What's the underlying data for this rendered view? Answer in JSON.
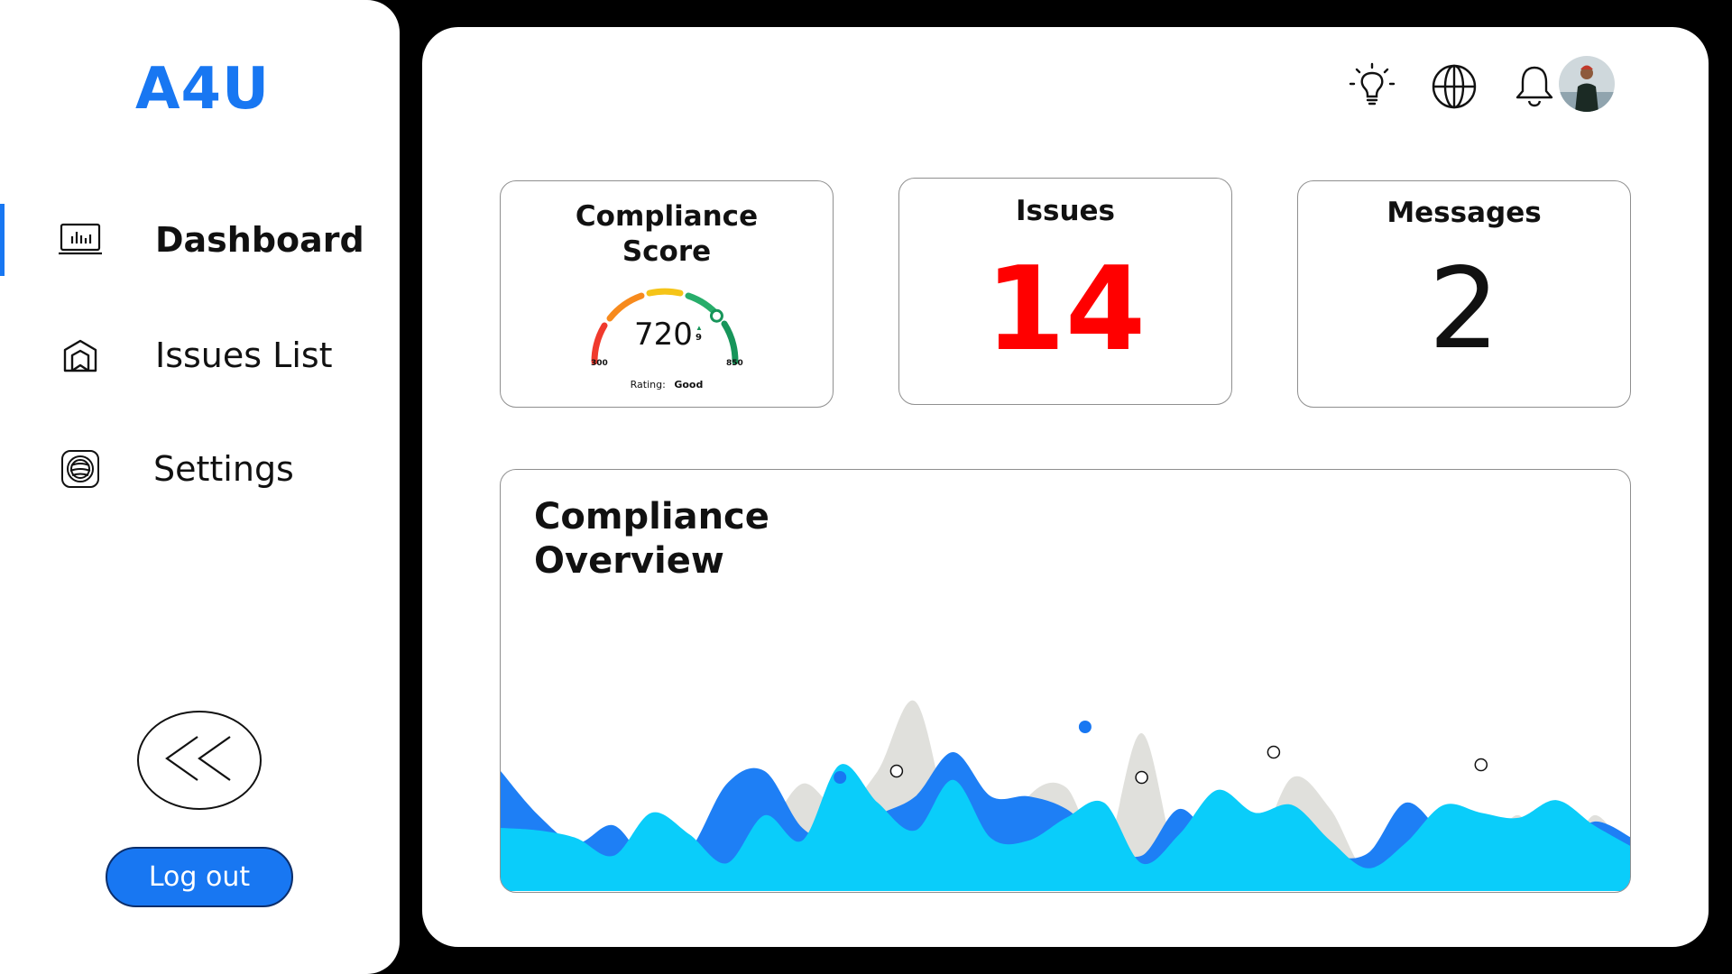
{
  "app": {
    "logo": "A4U",
    "accent": "#1877f2"
  },
  "sidebar": {
    "items": [
      {
        "label": "Dashboard",
        "icon": "dashboard-icon",
        "active": true
      },
      {
        "label": "Issues List",
        "icon": "issues-icon",
        "active": false
      },
      {
        "label": "Settings",
        "icon": "settings-icon",
        "active": false
      }
    ],
    "collapse_icon": "double-chevron-left-icon",
    "logout_label": "Log out"
  },
  "header": {
    "icons": [
      "lightbulb-icon",
      "globe-icon",
      "bell-icon"
    ],
    "avatar": "user-avatar"
  },
  "cards": {
    "compliance": {
      "title": "Compliance Score",
      "score": "720",
      "delta": "9",
      "min": "300",
      "max": "850",
      "rating_label": "Rating:",
      "rating_value": "Good",
      "score_value": 720,
      "score_min": 300,
      "score_max": 850
    },
    "issues": {
      "title": "Issues",
      "value": "14",
      "color": "#ff0000"
    },
    "messages": {
      "title": "Messages",
      "value": "2"
    }
  },
  "overview": {
    "title": "Compliance Overview"
  },
  "chart_data": {
    "type": "area",
    "title": "Compliance Overview",
    "x": [
      0,
      1,
      2,
      3,
      4,
      5,
      6,
      7,
      8,
      9,
      10,
      11,
      12,
      13,
      14,
      15,
      16,
      17,
      18,
      19,
      20,
      21,
      22,
      23,
      24,
      25,
      26,
      27,
      28,
      29,
      30
    ],
    "series": [
      {
        "values": [
          48,
          58,
          20,
          22,
          42,
          40,
          18,
          45,
          85,
          65,
          95,
          150,
          45,
          18,
          75,
          82,
          30,
          125,
          20,
          60,
          35,
          90,
          65,
          15,
          55,
          45,
          25,
          60,
          10,
          60,
          20
        ],
        "color": "#e0e0dc"
      },
      {
        "values": [
          95,
          60,
          38,
          52,
          20,
          32,
          85,
          95,
          50,
          40,
          60,
          75,
          110,
          75,
          75,
          65,
          40,
          28,
          65,
          38,
          40,
          55,
          30,
          30,
          70,
          45,
          25,
          55,
          35,
          55,
          42
        ],
        "color": "#1e7ff5"
      },
      {
        "values": [
          50,
          48,
          42,
          28,
          62,
          45,
          22,
          60,
          40,
          100,
          70,
          48,
          88,
          42,
          40,
          58,
          70,
          22,
          45,
          80,
          62,
          68,
          40,
          18,
          38,
          68,
          62,
          58,
          72,
          52,
          35
        ],
        "color": "#0acdfa"
      }
    ],
    "markers": [
      {
        "x": 9,
        "y": 90,
        "filled": true
      },
      {
        "x": 10.5,
        "y": 95,
        "filled": false
      },
      {
        "x": 15.5,
        "y": 130,
        "filled": true
      },
      {
        "x": 17,
        "y": 90,
        "filled": false
      },
      {
        "x": 20.5,
        "y": 110,
        "filled": false
      },
      {
        "x": 26,
        "y": 100,
        "filled": false
      }
    ],
    "ylim": [
      0,
      200
    ],
    "grid": false,
    "legend": "none"
  }
}
